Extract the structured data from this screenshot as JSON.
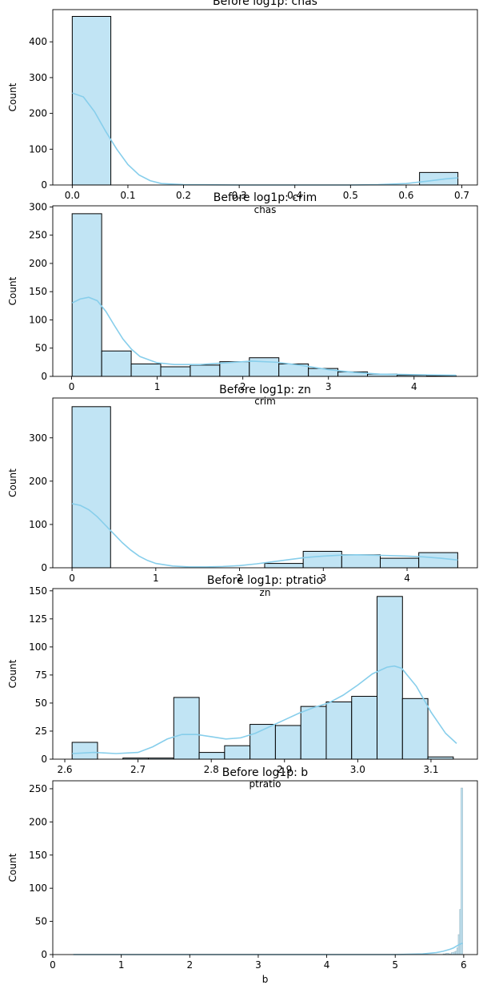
{
  "chart_data": [
    {
      "type": "bar",
      "title": "Before log1p: chas",
      "xlabel": "chas",
      "ylabel": "Count",
      "xlim": [
        -0.035,
        0.728
      ],
      "ylim": [
        0,
        490
      ],
      "x_ticks": [
        0.0,
        0.1,
        0.2,
        0.3,
        0.4,
        0.5,
        0.6,
        0.7
      ],
      "x_tick_labels": [
        "0.0",
        "0.1",
        "0.2",
        "0.3",
        "0.4",
        "0.5",
        "0.6",
        "0.7"
      ],
      "y_ticks": [
        0,
        100,
        200,
        300,
        400
      ],
      "y_tick_labels": [
        "0",
        "100",
        "200",
        "300",
        "400"
      ],
      "bins": [
        [
          0.0,
          0.0693,
          471
        ],
        [
          0.624,
          0.693,
          35
        ]
      ],
      "kde": [
        [
          0.0,
          257
        ],
        [
          0.02,
          246
        ],
        [
          0.04,
          205
        ],
        [
          0.06,
          150
        ],
        [
          0.08,
          100
        ],
        [
          0.1,
          57
        ],
        [
          0.12,
          28
        ],
        [
          0.14,
          12
        ],
        [
          0.16,
          4
        ],
        [
          0.2,
          1
        ],
        [
          0.3,
          0
        ],
        [
          0.4,
          0
        ],
        [
          0.5,
          0
        ],
        [
          0.55,
          1
        ],
        [
          0.6,
          4
        ],
        [
          0.64,
          11
        ],
        [
          0.67,
          17
        ],
        [
          0.693,
          20
        ]
      ],
      "bar_color": "#c1e4f4",
      "edge_color": "#000000",
      "kde_color": "#87ceeb",
      "grid": false
    },
    {
      "type": "bar",
      "title": "Before log1p: crim",
      "xlabel": "crim",
      "ylabel": "Count",
      "xlim": [
        -0.22,
        4.74
      ],
      "ylim": [
        0,
        302
      ],
      "x_ticks": [
        0,
        1,
        2,
        3,
        4
      ],
      "x_tick_labels": [
        "0",
        "1",
        "2",
        "3",
        "4"
      ],
      "y_ticks": [
        0,
        50,
        100,
        150,
        200,
        250,
        300
      ],
      "y_tick_labels": [
        "0",
        "50",
        "100",
        "150",
        "200",
        "250",
        "300"
      ],
      "bins": [
        [
          0.006,
          0.351,
          288
        ],
        [
          0.351,
          0.696,
          45
        ],
        [
          0.696,
          1.041,
          22
        ],
        [
          1.041,
          1.386,
          17
        ],
        [
          1.386,
          1.731,
          20
        ],
        [
          1.731,
          2.076,
          26
        ],
        [
          2.076,
          2.421,
          33
        ],
        [
          2.421,
          2.766,
          22
        ],
        [
          2.766,
          3.111,
          14
        ],
        [
          3.111,
          3.456,
          8
        ],
        [
          3.456,
          3.801,
          4
        ],
        [
          3.801,
          4.146,
          2
        ],
        [
          4.146,
          4.491,
          1
        ]
      ],
      "kde": [
        [
          0.006,
          130
        ],
        [
          0.1,
          137
        ],
        [
          0.2,
          140
        ],
        [
          0.3,
          134
        ],
        [
          0.4,
          115
        ],
        [
          0.5,
          90
        ],
        [
          0.6,
          66
        ],
        [
          0.7,
          48
        ],
        [
          0.8,
          35
        ],
        [
          1.0,
          24
        ],
        [
          1.2,
          21
        ],
        [
          1.5,
          21
        ],
        [
          1.8,
          24
        ],
        [
          2.1,
          27
        ],
        [
          2.4,
          25
        ],
        [
          2.7,
          19
        ],
        [
          3.0,
          12
        ],
        [
          3.3,
          7
        ],
        [
          3.6,
          4
        ],
        [
          4.0,
          3
        ],
        [
          4.491,
          2
        ]
      ],
      "bar_color": "#c1e4f4",
      "edge_color": "#000000",
      "kde_color": "#87ceeb",
      "grid": false
    },
    {
      "type": "bar",
      "title": "Before log1p: zn",
      "xlabel": "zn",
      "ylabel": "Count",
      "xlim": [
        -0.23,
        4.84
      ],
      "ylim": [
        0,
        392
      ],
      "x_ticks": [
        0,
        1,
        2,
        3,
        4
      ],
      "x_tick_labels": [
        "0",
        "1",
        "2",
        "3",
        "4"
      ],
      "y_ticks": [
        0,
        100,
        200,
        300
      ],
      "y_tick_labels": [
        "0",
        "100",
        "200",
        "300"
      ],
      "bins": [
        [
          0.0,
          0.46,
          372
        ],
        [
          2.3,
          2.76,
          10
        ],
        [
          2.76,
          3.22,
          38
        ],
        [
          3.22,
          3.68,
          30
        ],
        [
          3.68,
          4.14,
          22
        ],
        [
          4.14,
          4.605,
          35
        ]
      ],
      "kde": [
        [
          0.0,
          148
        ],
        [
          0.1,
          144
        ],
        [
          0.2,
          134
        ],
        [
          0.3,
          118
        ],
        [
          0.4,
          98
        ],
        [
          0.5,
          78
        ],
        [
          0.6,
          58
        ],
        [
          0.7,
          41
        ],
        [
          0.8,
          27
        ],
        [
          0.9,
          17
        ],
        [
          1.0,
          10
        ],
        [
          1.2,
          4
        ],
        [
          1.4,
          2
        ],
        [
          1.6,
          2
        ],
        [
          1.8,
          3
        ],
        [
          2.0,
          5
        ],
        [
          2.2,
          9
        ],
        [
          2.4,
          14
        ],
        [
          2.6,
          19
        ],
        [
          2.8,
          24
        ],
        [
          3.0,
          27
        ],
        [
          3.2,
          29
        ],
        [
          3.4,
          30
        ],
        [
          3.6,
          29
        ],
        [
          3.8,
          28
        ],
        [
          4.0,
          27
        ],
        [
          4.2,
          25
        ],
        [
          4.4,
          22
        ],
        [
          4.605,
          18
        ]
      ],
      "bar_color": "#c1e4f4",
      "edge_color": "#000000",
      "kde_color": "#87ceeb",
      "grid": false
    },
    {
      "type": "bar",
      "title": "Before log1p: ptratio",
      "xlabel": "ptratio",
      "ylabel": "Count",
      "xlim": [
        2.5836,
        3.1634
      ],
      "ylim": [
        0,
        152
      ],
      "x_ticks": [
        2.6,
        2.7,
        2.8,
        2.9,
        3.0,
        3.1
      ],
      "x_tick_labels": [
        "2.6",
        "2.7",
        "2.8",
        "2.9",
        "3.0",
        "3.1"
      ],
      "y_ticks": [
        0,
        25,
        50,
        75,
        100,
        125,
        150
      ],
      "y_tick_labels": [
        "0",
        "25",
        "50",
        "75",
        "100",
        "125",
        "150"
      ],
      "bins": [
        [
          2.61,
          2.6447,
          15
        ],
        [
          2.6447,
          2.6794,
          0
        ],
        [
          2.6794,
          2.7141,
          1
        ],
        [
          2.7141,
          2.7488,
          1
        ],
        [
          2.7488,
          2.7835,
          55
        ],
        [
          2.7835,
          2.8182,
          6
        ],
        [
          2.8182,
          2.8529,
          12
        ],
        [
          2.8529,
          2.8876,
          31
        ],
        [
          2.8876,
          2.9223,
          30
        ],
        [
          2.9223,
          2.957,
          47
        ],
        [
          2.957,
          2.9917,
          51
        ],
        [
          2.9917,
          3.0264,
          56
        ],
        [
          3.0264,
          3.0611,
          145
        ],
        [
          3.0611,
          3.0958,
          54
        ],
        [
          3.0958,
          3.1305,
          2
        ]
      ],
      "kde": [
        [
          2.61,
          5
        ],
        [
          2.64,
          6
        ],
        [
          2.67,
          5
        ],
        [
          2.7,
          6
        ],
        [
          2.72,
          11
        ],
        [
          2.74,
          18
        ],
        [
          2.76,
          22
        ],
        [
          2.78,
          22
        ],
        [
          2.8,
          20
        ],
        [
          2.82,
          18
        ],
        [
          2.84,
          19
        ],
        [
          2.86,
          23
        ],
        [
          2.88,
          29
        ],
        [
          2.9,
          35
        ],
        [
          2.92,
          41
        ],
        [
          2.94,
          46
        ],
        [
          2.96,
          50
        ],
        [
          2.98,
          57
        ],
        [
          3.0,
          66
        ],
        [
          3.02,
          76
        ],
        [
          3.04,
          82
        ],
        [
          3.05,
          83
        ],
        [
          3.06,
          81
        ],
        [
          3.08,
          65
        ],
        [
          3.1,
          42
        ],
        [
          3.12,
          23
        ],
        [
          3.135,
          14
        ]
      ],
      "bar_color": "#c1e4f4",
      "edge_color": "#000000",
      "kde_color": "#87ceeb",
      "grid": false
    },
    {
      "type": "bar",
      "title": "Before log1p: b",
      "xlabel": "b",
      "ylabel": "Count",
      "xlim": [
        0,
        6.2
      ],
      "ylim": [
        0,
        262
      ],
      "x_ticks": [
        0,
        1,
        2,
        3,
        4,
        5,
        6
      ],
      "x_tick_labels": [
        "0",
        "1",
        "2",
        "3",
        "4",
        "5",
        "6"
      ],
      "y_ticks": [
        0,
        50,
        100,
        150,
        200,
        250
      ],
      "y_tick_labels": [
        "0",
        "50",
        "100",
        "150",
        "200",
        "250"
      ],
      "bins": [
        [
          5.7,
          5.74,
          1
        ],
        [
          5.74,
          5.78,
          2
        ],
        [
          5.78,
          5.82,
          1
        ],
        [
          5.82,
          5.86,
          3
        ],
        [
          5.86,
          5.88,
          4
        ],
        [
          5.88,
          5.9,
          5
        ],
        [
          5.9,
          5.92,
          10
        ],
        [
          5.92,
          5.94,
          30
        ],
        [
          5.94,
          5.96,
          68
        ],
        [
          5.96,
          5.985,
          251
        ]
      ],
      "kde": [
        [
          0.3,
          0
        ],
        [
          1.0,
          0
        ],
        [
          2.0,
          0
        ],
        [
          3.0,
          0
        ],
        [
          4.0,
          0
        ],
        [
          5.0,
          0
        ],
        [
          5.4,
          1
        ],
        [
          5.6,
          3
        ],
        [
          5.7,
          5
        ],
        [
          5.8,
          8
        ],
        [
          5.85,
          10
        ],
        [
          5.9,
          13
        ],
        [
          5.95,
          16
        ],
        [
          5.985,
          17
        ]
      ],
      "bar_color": "#c1e4f4",
      "edge_color": "#a9c4cf",
      "kde_color": "#87ceeb",
      "grid": false
    }
  ]
}
